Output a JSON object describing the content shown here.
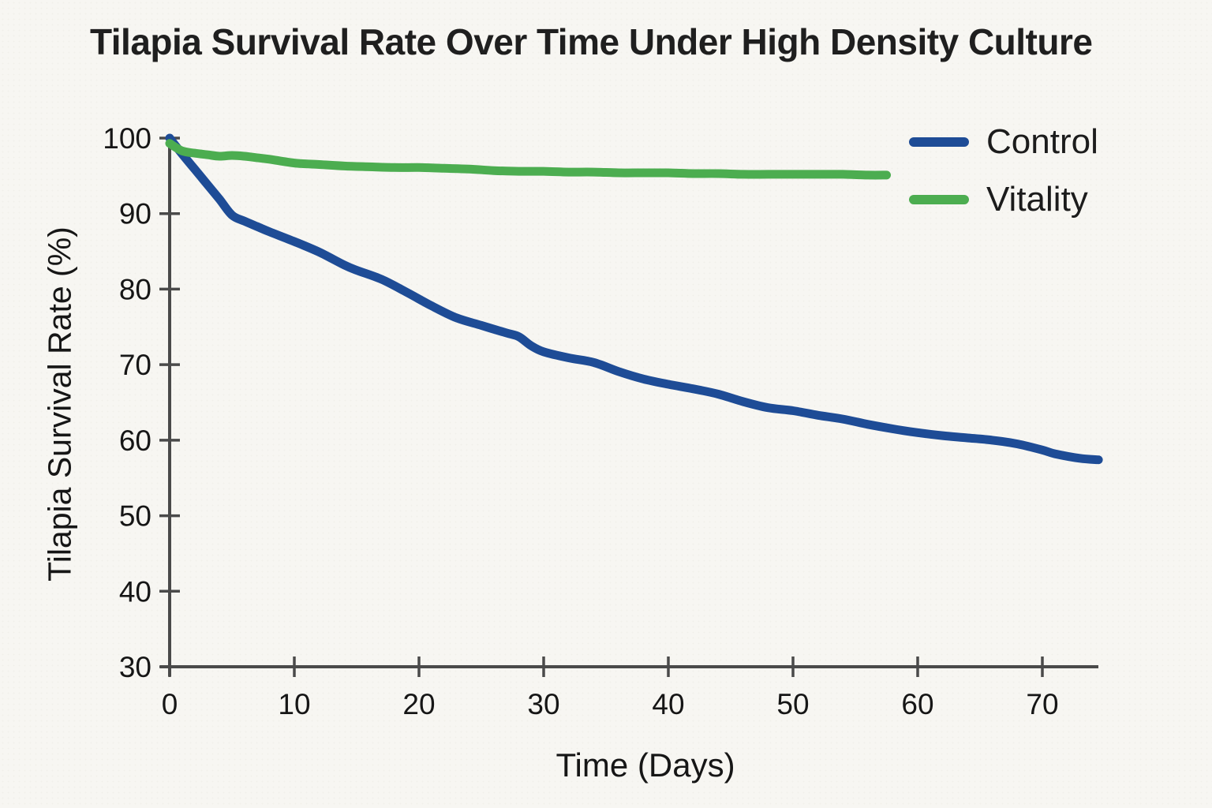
{
  "page": {
    "background": "#f7f6f2"
  },
  "chart_data": {
    "type": "line",
    "title": "Tilapia Survival Rate Over Time Under High Density Culture",
    "xlabel": "Time (Days)",
    "ylabel": "Tilapia Survival Rate (%)",
    "xlim": [
      0,
      74.5
    ],
    "ylim": [
      30,
      100
    ],
    "x_ticks": [
      0,
      10,
      20,
      30,
      40,
      50,
      60,
      70
    ],
    "y_ticks": [
      100,
      90,
      80,
      70,
      60,
      50,
      40,
      30
    ],
    "grid": false,
    "legend_position": "top-right",
    "axis_color": "#4a4a4a",
    "tick_text_color": "#161616",
    "series": [
      {
        "name": "Control",
        "color": "#1e4c96",
        "x": [
          0,
          1,
          2,
          3,
          4,
          5,
          6,
          7,
          8,
          10,
          12,
          14,
          15,
          17,
          19,
          21,
          23,
          25,
          27,
          28,
          29,
          30,
          32,
          34,
          36,
          38,
          40,
          42,
          44,
          46,
          48,
          50,
          52,
          54,
          56,
          58,
          60,
          62,
          64,
          66,
          68,
          70,
          71,
          73,
          74.5
        ],
        "y": [
          100,
          97.9,
          95.9,
          93.9,
          91.9,
          89.8,
          89.0,
          88.3,
          87.6,
          86.3,
          84.9,
          83.2,
          82.5,
          81.3,
          79.6,
          77.8,
          76.2,
          75.2,
          74.2,
          73.7,
          72.5,
          71.7,
          70.9,
          70.3,
          69.1,
          68.1,
          67.4,
          66.8,
          66.1,
          65.1,
          64.3,
          63.9,
          63.3,
          62.8,
          62.1,
          61.5,
          61.0,
          60.6,
          60.3,
          60.0,
          59.5,
          58.7,
          58.2,
          57.6,
          57.4
        ]
      },
      {
        "name": "Vitality",
        "color": "#4cad50",
        "x": [
          0,
          1,
          2,
          3,
          4,
          5,
          6,
          7,
          8,
          10,
          12,
          14,
          16,
          18,
          20,
          22,
          24,
          26,
          28,
          30,
          32,
          34,
          36,
          38,
          40,
          42,
          44,
          46,
          48,
          50,
          52,
          54,
          56,
          57.5
        ],
        "y": [
          99.3,
          98.3,
          98.0,
          97.8,
          97.6,
          97.7,
          97.6,
          97.4,
          97.2,
          96.7,
          96.5,
          96.3,
          96.2,
          96.1,
          96.1,
          96.0,
          95.9,
          95.7,
          95.6,
          95.6,
          95.5,
          95.5,
          95.4,
          95.4,
          95.4,
          95.3,
          95.3,
          95.2,
          95.2,
          95.2,
          95.2,
          95.2,
          95.1,
          95.1
        ]
      }
    ]
  }
}
